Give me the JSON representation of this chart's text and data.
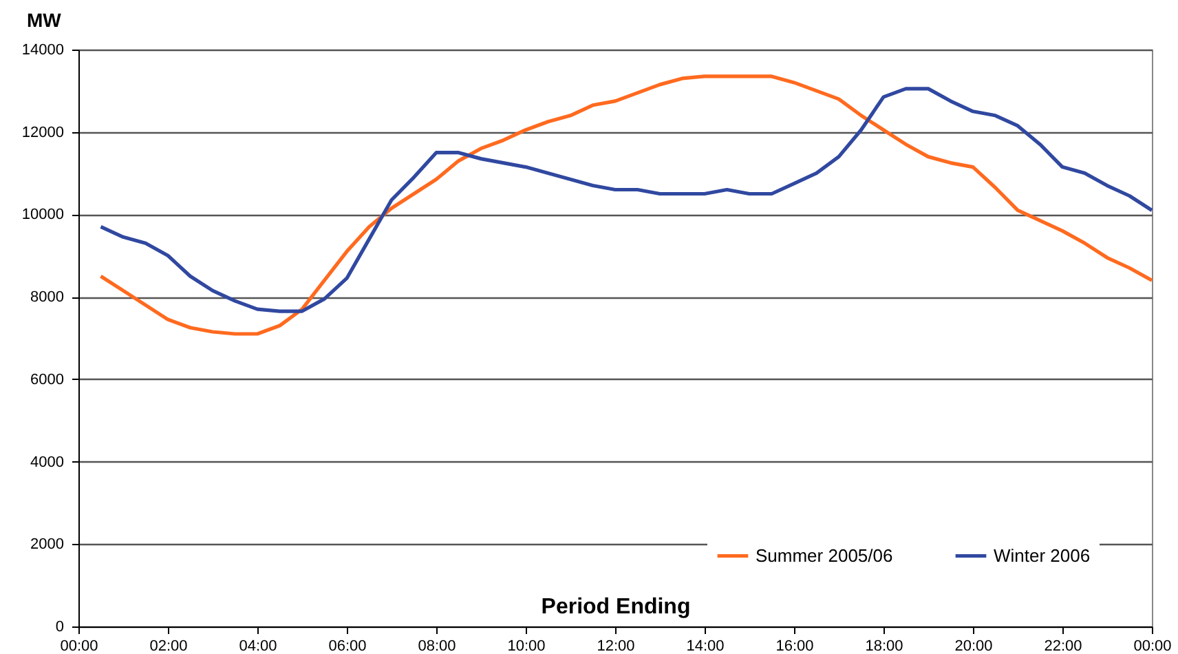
{
  "chart_data": {
    "type": "line",
    "xlabel": "Period Ending",
    "ylabel": "MW",
    "x": [
      0.5,
      1,
      1.5,
      2,
      2.5,
      3,
      3.5,
      4,
      4.5,
      5,
      5.5,
      6,
      6.5,
      7,
      7.5,
      8,
      8.5,
      9,
      9.5,
      10,
      10.5,
      11,
      11.5,
      12,
      12.5,
      13,
      13.5,
      14,
      14.5,
      15,
      15.5,
      16,
      16.5,
      17,
      17.5,
      18,
      18.5,
      19,
      19.5,
      20,
      20.5,
      21,
      21.5,
      22,
      22.5,
      23,
      23.5,
      24
    ],
    "series": [
      {
        "name": "Summer 2005/06",
        "color": "#ff6a1f",
        "values": [
          8500,
          8150,
          7800,
          7450,
          7250,
          7150,
          7100,
          7100,
          7300,
          7700,
          8400,
          9100,
          9700,
          10150,
          10500,
          10850,
          11300,
          11600,
          11800,
          12050,
          12250,
          12400,
          12650,
          12750,
          12950,
          13150,
          13300,
          13350,
          13350,
          13350,
          13350,
          13200,
          13000,
          12800,
          12400,
          12050,
          11700,
          11400,
          11250,
          11150,
          10650,
          10100,
          9850,
          9600,
          9300,
          8950,
          8700,
          8400
        ]
      },
      {
        "name": "Winter 2006",
        "color": "#3048a0",
        "values": [
          9700,
          9450,
          9300,
          9000,
          8500,
          8150,
          7900,
          7700,
          7650,
          7650,
          7950,
          8450,
          9400,
          10350,
          10900,
          11500,
          11500,
          11350,
          11250,
          11150,
          11000,
          10850,
          10700,
          10600,
          10600,
          10500,
          10500,
          10500,
          10600,
          10500,
          10500,
          10750,
          11000,
          11400,
          12050,
          12850,
          13050,
          13050,
          12750,
          12500,
          12400,
          12150,
          11700,
          11150,
          11000,
          10700,
          10450,
          10100
        ]
      }
    ],
    "xlim": [
      0,
      24
    ],
    "xticks": [
      {
        "value": 0,
        "label": "00:00"
      },
      {
        "value": 2,
        "label": "02:00"
      },
      {
        "value": 4,
        "label": "04:00"
      },
      {
        "value": 6,
        "label": "06:00"
      },
      {
        "value": 8,
        "label": "08:00"
      },
      {
        "value": 10,
        "label": "10:00"
      },
      {
        "value": 12,
        "label": "12:00"
      },
      {
        "value": 14,
        "label": "14:00"
      },
      {
        "value": 16,
        "label": "16:00"
      },
      {
        "value": 18,
        "label": "18:00"
      },
      {
        "value": 20,
        "label": "20:00"
      },
      {
        "value": 22,
        "label": "22:00"
      },
      {
        "value": 24,
        "label": "00:00"
      }
    ],
    "ylim": [
      0,
      14000
    ],
    "yticks": [
      0,
      2000,
      4000,
      6000,
      8000,
      10000,
      12000,
      14000
    ],
    "grid": "y",
    "legend": "bottom right",
    "marker": "none",
    "line_style": "solid"
  }
}
